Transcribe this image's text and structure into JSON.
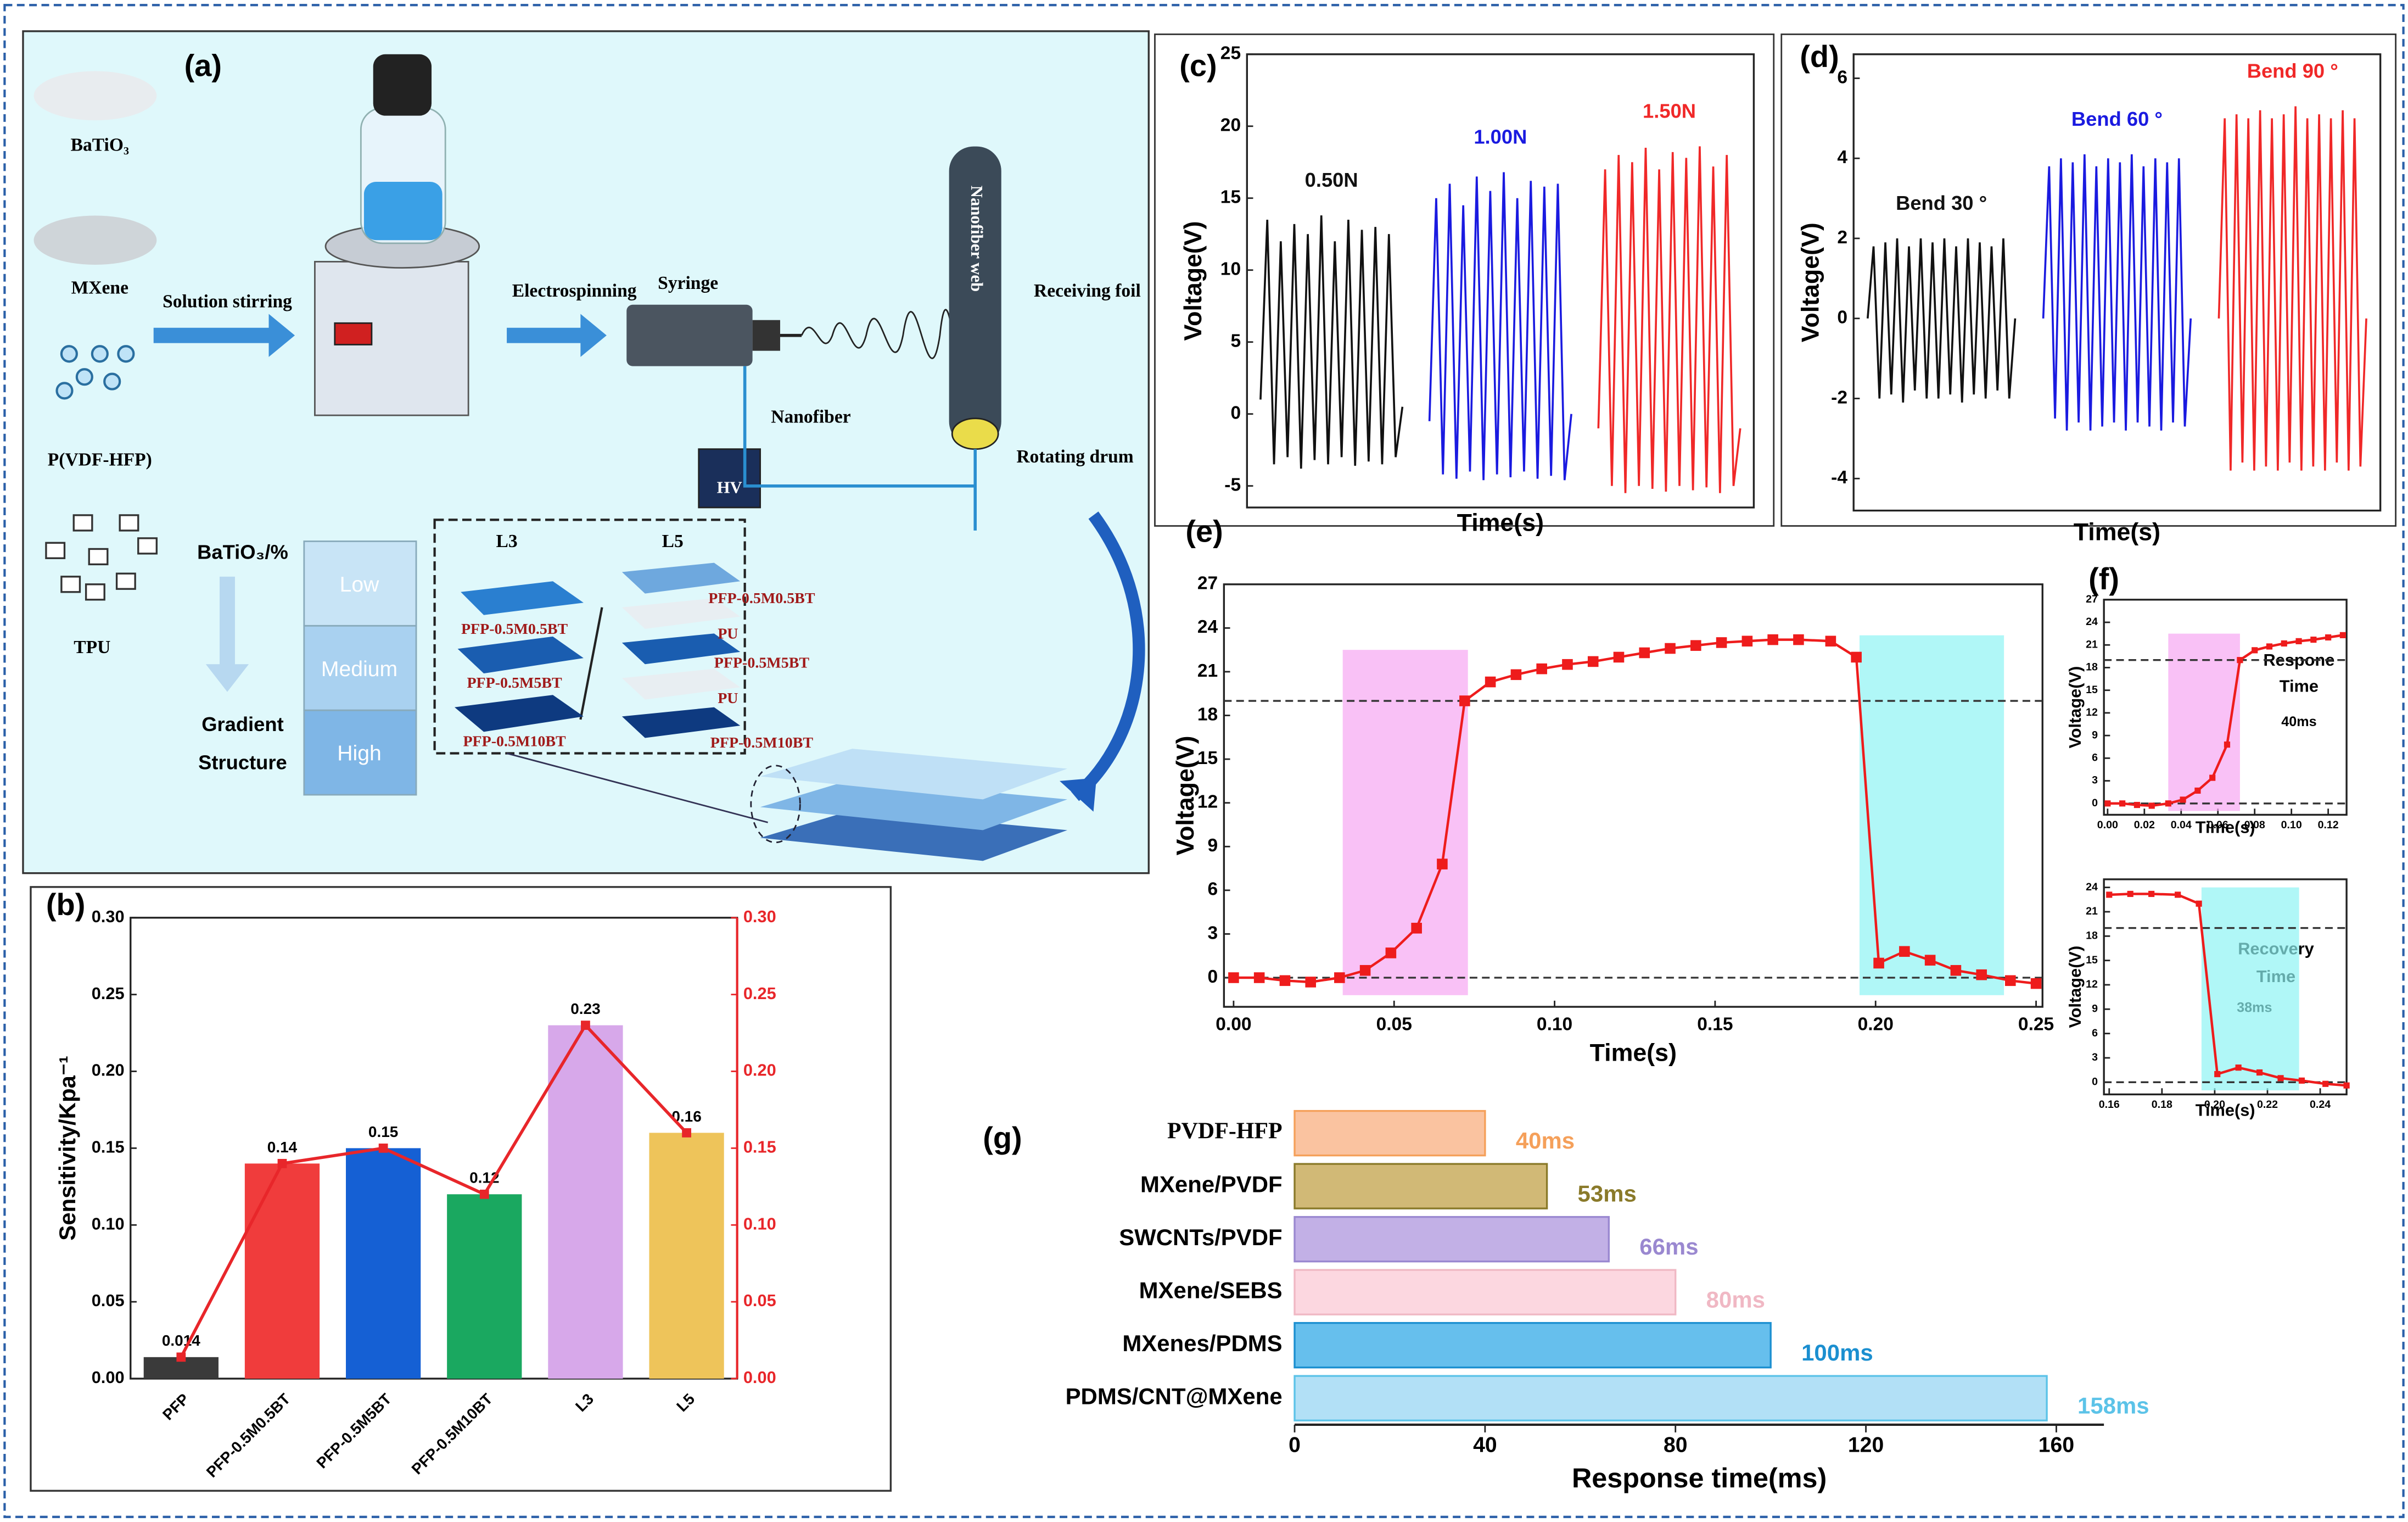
{
  "diagram": {
    "label": "(a)",
    "materials": [
      "BaTiO₃",
      "MXene",
      "P(VDF-HFP)",
      "TPU"
    ],
    "steps": [
      "Solution stirring",
      "Electrospinning"
    ],
    "parts": [
      "Syringe",
      "Nanofiber web",
      "Receiving foil",
      "Nanofiber",
      "Rotating drum",
      "HV"
    ],
    "gradient_axis": "BaTiO₃/%",
    "levels": [
      "Low",
      "Medium",
      "High"
    ],
    "gradient": [
      "Gradient",
      "Structure"
    ],
    "l3": {
      "label": "L3",
      "layers": [
        "PFP-0.5M0.5BT",
        "PFP-0.5M5BT",
        "PFP-0.5M10BT"
      ]
    },
    "l5": {
      "label": "L5",
      "layers": [
        "PFP-0.5M0.5BT",
        "PU",
        "PFP-0.5M5BT",
        "PU",
        "PFP-0.5M10BT"
      ]
    }
  },
  "chart_data": [
    {
      "type": "bar",
      "panel_label": "(b)",
      "ylabel": "Sensitivity/Kpa⁻¹",
      "categories": [
        "PFP",
        "PFP-0.5M0.5BT",
        "PFP-0.5M5BT",
        "PFP-0.5M10BT",
        "L3",
        "L5"
      ],
      "values": [
        0.014,
        0.14,
        0.15,
        0.12,
        0.23,
        0.16
      ],
      "colors": [
        "#3a3a3a",
        "#f03c3c",
        "#1560d4",
        "#1aa860",
        "#d7a8ea",
        "#eec45a"
      ],
      "line_values": [
        0.014,
        0.14,
        0.15,
        0.12,
        0.23,
        0.16
      ],
      "line_color": "#e8262a",
      "line_axis": "y2",
      "ylim": [
        0,
        0.3
      ],
      "yticks": [
        {
          "value": 0,
          "label": "0.00"
        },
        {
          "value": 0.05,
          "label": "0.05"
        },
        {
          "value": 0.1,
          "label": "0.10"
        },
        {
          "value": 0.15,
          "label": "0.15"
        },
        {
          "value": 0.2,
          "label": "0.20"
        },
        {
          "value": 0.25,
          "label": "0.25"
        },
        {
          "value": 0.3,
          "label": "0.30"
        }
      ],
      "y2lim": [
        0,
        0.3
      ],
      "y2ticks": [
        {
          "value": 0,
          "label": "0.00"
        },
        {
          "value": 0.05,
          "label": "0.05"
        },
        {
          "value": 0.1,
          "label": "0.10"
        },
        {
          "value": 0.15,
          "label": "0.15"
        },
        {
          "value": 0.2,
          "label": "0.20"
        },
        {
          "value": 0.25,
          "label": "0.25"
        },
        {
          "value": 0.3,
          "label": "0.30"
        }
      ]
    },
    {
      "type": "line",
      "panel_label": "(c)",
      "xlabel": "Time(s)",
      "ylabel": "Voltage(V)",
      "ylim": [
        -6.5,
        25
      ],
      "yticks": [
        -5,
        0,
        5,
        10,
        15,
        20,
        25
      ],
      "series": [
        {
          "name": "0.50N",
          "color": "#111111",
          "values": [
            1,
            13.5,
            -3.5,
            12,
            -3,
            13.2,
            -3.8,
            12.5,
            -3.2,
            13.8,
            -3.5,
            12,
            -3,
            13.5,
            -3.6,
            12.8,
            -3.3,
            13,
            -3.5,
            12.5,
            -3,
            0.5
          ]
        },
        {
          "name": "1.00N",
          "color": "#1a1ae0",
          "values": [
            -0.5,
            15,
            -4.2,
            16,
            -4.5,
            14.5,
            -4,
            16.5,
            -4.6,
            15.5,
            -4.2,
            16.8,
            -4.4,
            15,
            -4,
            16.2,
            -4.5,
            15.8,
            -4.3,
            16,
            -4.6,
            0
          ]
        },
        {
          "name": "1.50N",
          "color": "#f02828",
          "values": [
            -1,
            17,
            -5,
            18,
            -5.5,
            17.5,
            -5,
            18.5,
            -5.2,
            17,
            -5.4,
            18.2,
            -5,
            17.8,
            -5.3,
            18.6,
            -5.1,
            17.2,
            -5.5,
            18,
            -5,
            -1
          ]
        }
      ]
    },
    {
      "type": "line",
      "panel_label": "(d)",
      "xlabel": "Time(s)",
      "ylabel": "Voltage(V)",
      "ylim": [
        -4.8,
        6.6
      ],
      "yticks": [
        -4,
        -2,
        0,
        2,
        4,
        6
      ],
      "series": [
        {
          "name": "Bend 30 °",
          "color": "#111111",
          "values": [
            0,
            1.8,
            -2,
            1.9,
            -1.9,
            2,
            -2.1,
            1.8,
            -1.8,
            2,
            -2,
            1.9,
            -2,
            2,
            -1.9,
            1.8,
            -2.1,
            2,
            -1.9,
            1.9,
            -2,
            1.8,
            -1.8,
            2,
            -2,
            0
          ]
        },
        {
          "name": "Bend 60 °",
          "color": "#1a1ae0",
          "values": [
            0,
            3.8,
            -2.5,
            4,
            -2.8,
            3.9,
            -2.6,
            4.1,
            -2.8,
            3.8,
            -2.7,
            4,
            -2.6,
            3.9,
            -2.8,
            4.1,
            -2.6,
            3.8,
            -2.7,
            4,
            -2.8,
            3.9,
            -2.6,
            4,
            -2.7,
            0
          ]
        },
        {
          "name": "Bend 90 °",
          "color": "#f02828",
          "values": [
            0,
            5,
            -3.8,
            5.1,
            -3.6,
            5,
            -3.8,
            5.2,
            -3.7,
            5,
            -3.8,
            5.1,
            -3.6,
            5.3,
            -3.8,
            5,
            -3.7,
            5.1,
            -3.8,
            5,
            -3.6,
            5.2,
            -3.8,
            5,
            -3.7,
            0
          ]
        }
      ]
    },
    {
      "type": "line",
      "panel_label": "(e)",
      "xlabel": "Time(s)",
      "ylabel": "Voltage(V)",
      "color": "#ee1c1c",
      "markers": true,
      "x": [
        0,
        0.008,
        0.016,
        0.024,
        0.033,
        0.041,
        0.049,
        0.057,
        0.065,
        0.072,
        0.08,
        0.088,
        0.096,
        0.104,
        0.112,
        0.12,
        0.128,
        0.136,
        0.144,
        0.152,
        0.16,
        0.168,
        0.176,
        0.186,
        0.194,
        0.201,
        0.209,
        0.217,
        0.225,
        0.233,
        0.242,
        0.25
      ],
      "values": [
        0,
        0,
        -0.2,
        -0.3,
        0,
        0.5,
        1.7,
        3.4,
        7.8,
        19,
        20.3,
        20.8,
        21.2,
        21.5,
        21.7,
        22,
        22.3,
        22.6,
        22.8,
        23,
        23.1,
        23.2,
        23.2,
        23.1,
        22,
        1,
        1.8,
        1.2,
        0.5,
        0.2,
        -0.2,
        -0.4
      ],
      "bands": [
        {
          "x": [
            0.034,
            0.073
          ],
          "y": [
            -1.2,
            22.5
          ],
          "color": "#f7a6f2"
        },
        {
          "x": [
            0.195,
            0.24
          ],
          "y": [
            -1.2,
            23.5
          ],
          "color": "#8ff3f3"
        }
      ],
      "hlines": [
        19,
        0
      ],
      "xlim": [
        -0.003,
        0.252
      ],
      "xticks": [
        {
          "value": 0,
          "label": "0.00"
        },
        {
          "value": 0.05,
          "label": "0.05"
        },
        {
          "value": 0.1,
          "label": "0.10"
        },
        {
          "value": 0.15,
          "label": "0.15"
        },
        {
          "value": 0.2,
          "label": "0.20"
        },
        {
          "value": 0.25,
          "label": "0.25"
        }
      ],
      "ylim": [
        -2,
        27
      ],
      "yticks": [
        0,
        3,
        6,
        9,
        12,
        15,
        18,
        21,
        24,
        27
      ]
    },
    {
      "type": "line",
      "panel_label": "(f)",
      "xlabel": "Time(s)",
      "ylabel": "Voltage(V)",
      "color": "#ee1c1c",
      "markers": true,
      "annotations": [
        "Respone",
        "Time",
        "40ms"
      ],
      "x": [
        0,
        0.008,
        0.016,
        0.024,
        0.033,
        0.041,
        0.049,
        0.057,
        0.065,
        0.072,
        0.08,
        0.088,
        0.096,
        0.104,
        0.112,
        0.12,
        0.128
      ],
      "values": [
        0,
        0,
        -0.2,
        -0.3,
        0,
        0.5,
        1.7,
        3.4,
        7.8,
        19,
        20.3,
        20.8,
        21.2,
        21.5,
        21.7,
        22,
        22.3
      ],
      "bands": [
        {
          "x": [
            0.033,
            0.072
          ],
          "y": [
            -1,
            22.5
          ],
          "color": "#f7a6f2"
        }
      ],
      "hlines": [
        19,
        0
      ],
      "xlim": [
        -0.002,
        0.13
      ],
      "xticks": [
        {
          "value": 0,
          "label": "0.00"
        },
        {
          "value": 0.02,
          "label": "0.02"
        },
        {
          "value": 0.04,
          "label": "0.04"
        },
        {
          "value": 0.06,
          "label": "0.06"
        },
        {
          "value": 0.08,
          "label": "0.08"
        },
        {
          "value": 0.1,
          "label": "0.10"
        },
        {
          "value": 0.12,
          "label": "0.12"
        }
      ],
      "ylim": [
        -1.5,
        27
      ],
      "yticks": [
        0,
        3,
        6,
        9,
        12,
        15,
        18,
        21,
        24,
        27
      ]
    },
    {
      "type": "line",
      "xlabel": "Time(s)",
      "ylabel": "Voltage(V)",
      "color": "#ee1c1c",
      "markers": true,
      "annotations": [
        "Recovery",
        "Time",
        "38ms"
      ],
      "x": [
        0.16,
        0.168,
        0.176,
        0.186,
        0.194,
        0.201,
        0.209,
        0.217,
        0.225,
        0.233,
        0.242,
        0.25
      ],
      "values": [
        23.1,
        23.2,
        23.2,
        23.1,
        22,
        1,
        1.8,
        1.2,
        0.5,
        0.2,
        -0.2,
        -0.4
      ],
      "bands": [
        {
          "x": [
            0.195,
            0.232
          ],
          "y": [
            -1,
            24
          ],
          "color": "#8ff3f3"
        }
      ],
      "hlines": [
        19,
        0
      ],
      "xlim": [
        0.158,
        0.25
      ],
      "xticks": [
        {
          "value": 0.16,
          "label": "0.16"
        },
        {
          "value": 0.18,
          "label": "0.18"
        },
        {
          "value": 0.2,
          "label": "0.20"
        },
        {
          "value": 0.22,
          "label": "0.22"
        },
        {
          "value": 0.24,
          "label": "0.24"
        }
      ],
      "ylim": [
        -1.5,
        25
      ],
      "yticks": [
        0,
        3,
        6,
        9,
        12,
        15,
        18,
        21,
        24
      ]
    },
    {
      "type": "barh",
      "panel_label": "(g)",
      "xlabel": "Response time(ms)",
      "categories": [
        "PVDF-HFP",
        "MXene/PVDF",
        "SWCNTs/PVDF",
        "MXene/SEBS",
        "MXenes/PDMS",
        "PDMS/CNT@MXene"
      ],
      "values": [
        40,
        53,
        66,
        80,
        100,
        158
      ],
      "value_labels": [
        "40ms",
        "53ms",
        "66ms",
        "80ms",
        "100ms",
        "158ms"
      ],
      "colors": [
        "#f9b98f",
        "#c9ad5e",
        "#b7a2e2",
        "#fbd0da",
        "#4bb4ea",
        "#a5daf4"
      ],
      "label_colors": [
        "#f5a05a",
        "#8a7a2a",
        "#9a88d0",
        "#f0b8c4",
        "#1b8fd0",
        "#5cc3e8"
      ],
      "xlim": [
        0,
        170
      ],
      "xticks": [
        0,
        40,
        80,
        120,
        160
      ]
    }
  ]
}
